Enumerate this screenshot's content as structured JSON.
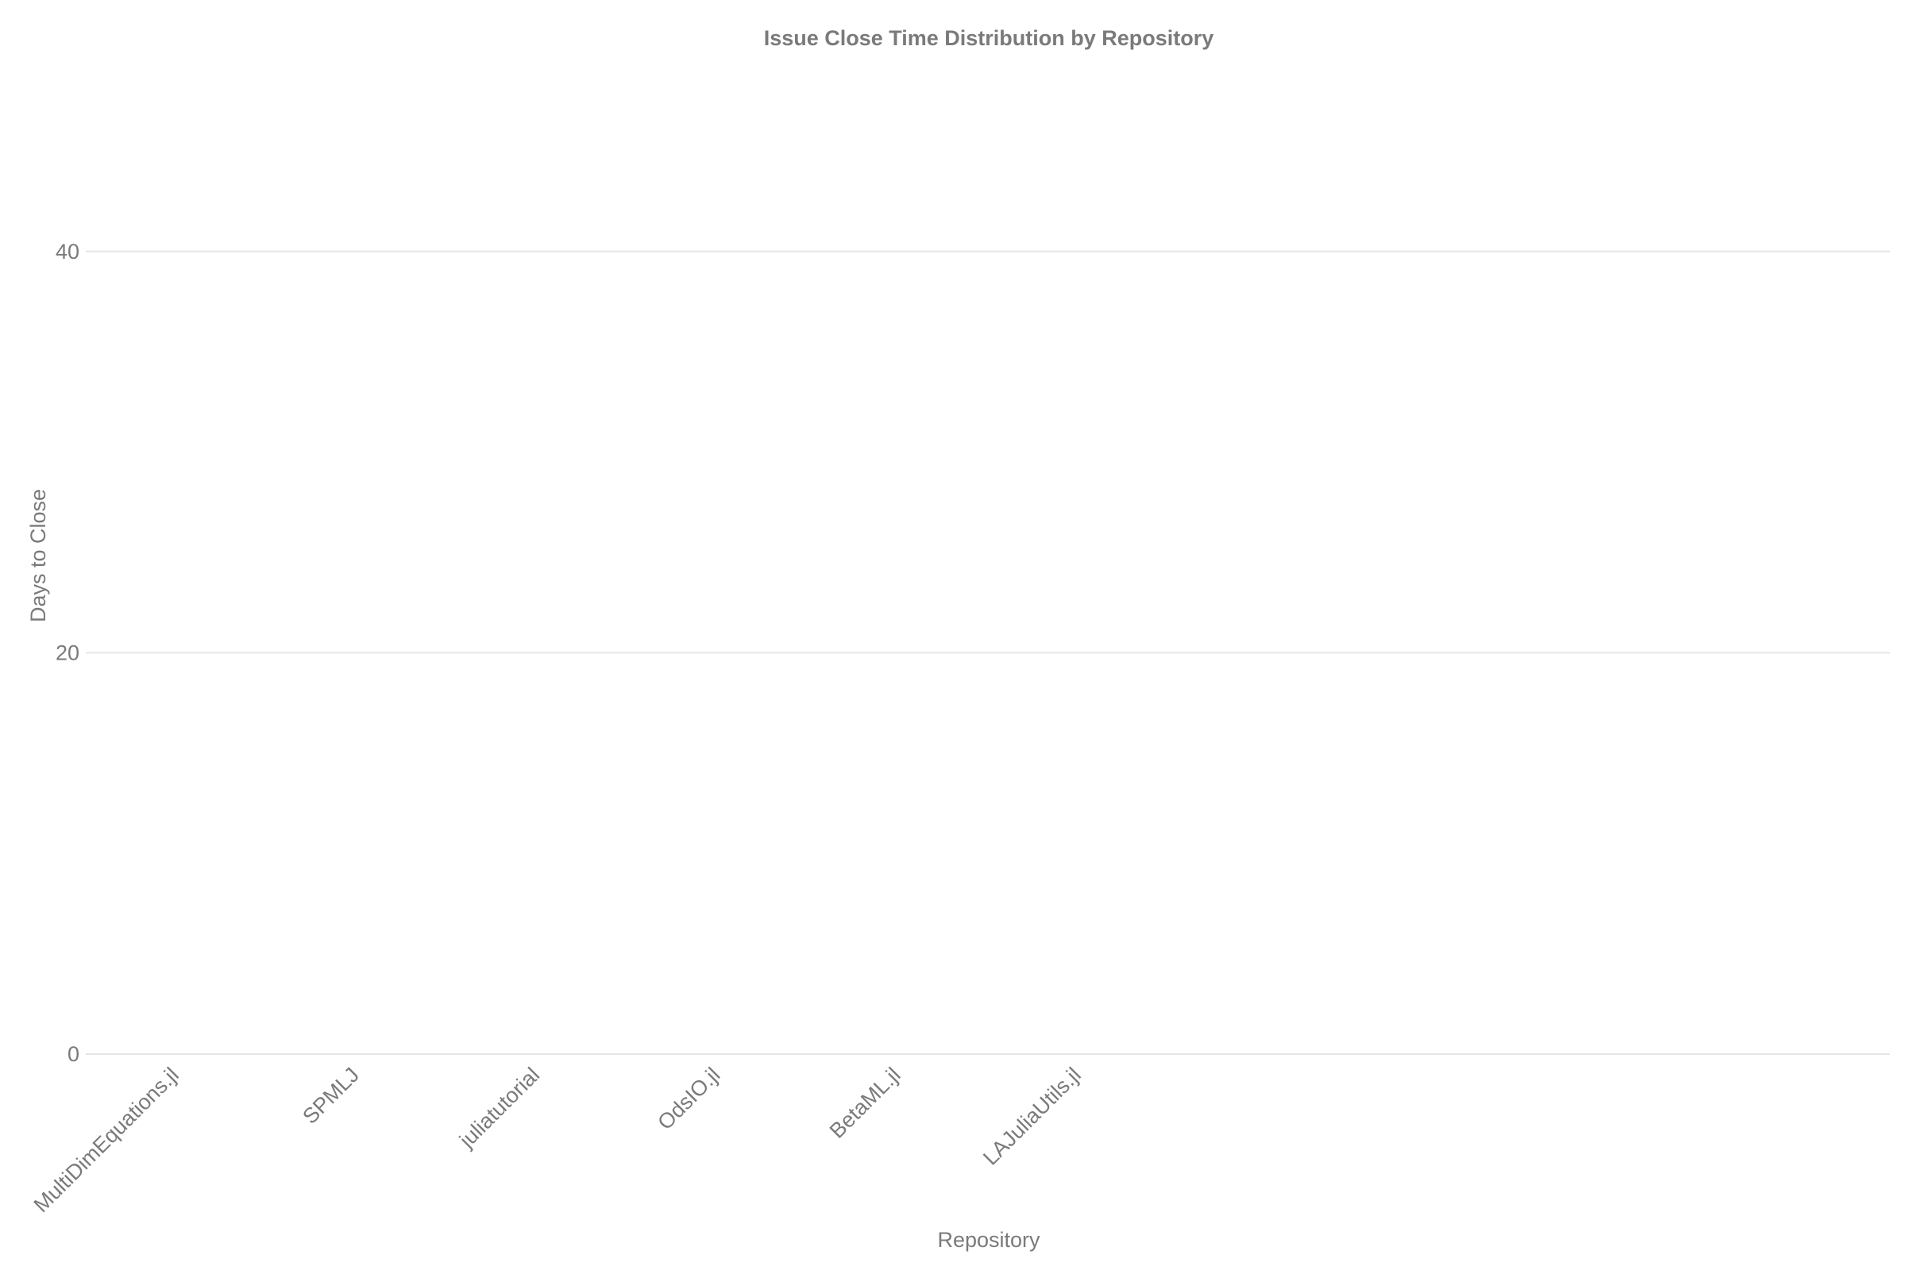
{
  "chart_data": {
    "type": "box",
    "title": "Issue Close Time Distribution by Repository",
    "xlabel": "Repository",
    "ylabel": "Days to Close",
    "categories": [
      "MultiDimEquations.jl",
      "SPMLJ",
      "juliatutorial",
      "OdsIO.jl",
      "BetaML.jl",
      "LAJuliaUtils.jl"
    ],
    "yticks": [
      0,
      20,
      40
    ],
    "ylim": [
      0,
      50
    ],
    "xslots": 10,
    "grid": true,
    "series": [],
    "colors": {
      "text": "#7a7a7a",
      "grid": "#e6e6e6",
      "background": "#ffffff"
    }
  }
}
